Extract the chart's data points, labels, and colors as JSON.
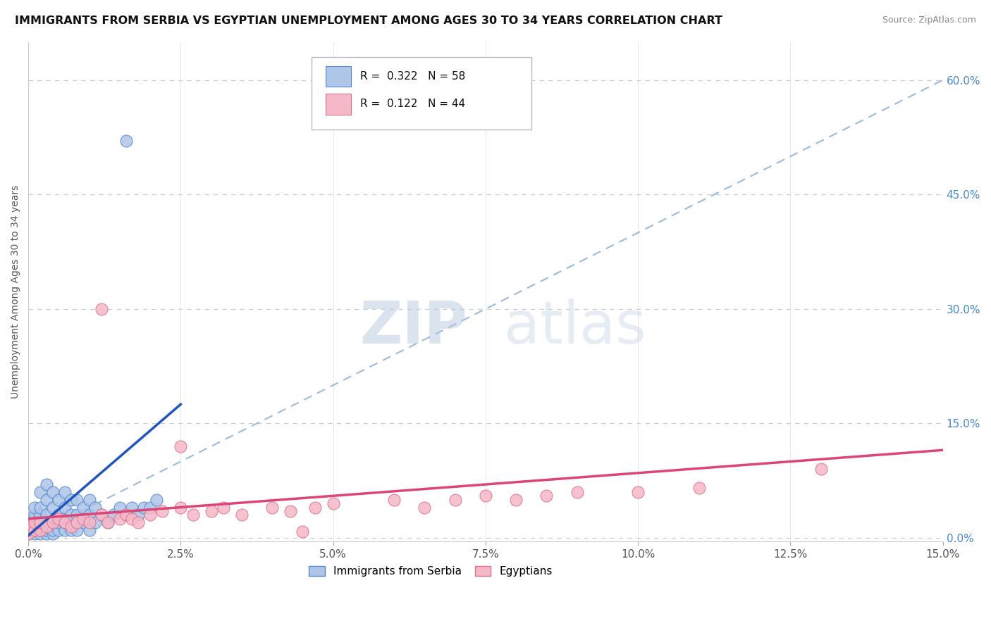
{
  "title": "IMMIGRANTS FROM SERBIA VS EGYPTIAN UNEMPLOYMENT AMONG AGES 30 TO 34 YEARS CORRELATION CHART",
  "source": "Source: ZipAtlas.com",
  "ylabel": "Unemployment Among Ages 30 to 34 years",
  "xlim": [
    0.0,
    0.15
  ],
  "ylim": [
    -0.005,
    0.65
  ],
  "xtick_vals": [
    0.0,
    0.025,
    0.05,
    0.075,
    0.1,
    0.125,
    0.15
  ],
  "xtick_labels": [
    "0.0%",
    "2.5%",
    "5.0%",
    "7.5%",
    "10.0%",
    "12.5%",
    "15.0%"
  ],
  "ytick_vals": [
    0.0,
    0.15,
    0.3,
    0.45,
    0.6
  ],
  "ytick_labels": [
    "0.0%",
    "15.0%",
    "30.0%",
    "45.0%",
    "60.0%"
  ],
  "serbia_color": "#aec6e8",
  "serbia_edge": "#5588cc",
  "egypt_color": "#f5b8c8",
  "egypt_edge": "#e0708a",
  "serbia_R": 0.322,
  "serbia_N": 58,
  "egypt_R": 0.122,
  "egypt_N": 44,
  "watermark_zip": "ZIP",
  "watermark_atlas": "atlas",
  "watermark_color": "#c8d5e8",
  "dash_color": "#99bbdd",
  "serbia_line_color": "#2255bb",
  "egypt_line_color": "#dd4477",
  "serbia_line_x0": 0.0,
  "serbia_line_y0": 0.003,
  "serbia_line_x1": 0.025,
  "serbia_line_y1": 0.175,
  "egypt_line_x0": 0.0,
  "egypt_line_y0": 0.025,
  "egypt_line_x1": 0.15,
  "egypt_line_y1": 0.115,
  "serbia_scatter_x": [
    0.0,
    0.0,
    0.001,
    0.001,
    0.001,
    0.001,
    0.001,
    0.001,
    0.001,
    0.002,
    0.002,
    0.002,
    0.002,
    0.002,
    0.002,
    0.003,
    0.003,
    0.003,
    0.003,
    0.003,
    0.003,
    0.004,
    0.004,
    0.004,
    0.004,
    0.004,
    0.005,
    0.005,
    0.005,
    0.005,
    0.006,
    0.006,
    0.006,
    0.006,
    0.007,
    0.007,
    0.007,
    0.008,
    0.008,
    0.008,
    0.009,
    0.009,
    0.01,
    0.01,
    0.01,
    0.011,
    0.011,
    0.012,
    0.013,
    0.014,
    0.015,
    0.016,
    0.017,
    0.018,
    0.019,
    0.02,
    0.021,
    0.016
  ],
  "serbia_scatter_y": [
    0.005,
    0.01,
    0.005,
    0.01,
    0.015,
    0.02,
    0.025,
    0.03,
    0.04,
    0.005,
    0.01,
    0.02,
    0.03,
    0.04,
    0.06,
    0.005,
    0.01,
    0.02,
    0.03,
    0.05,
    0.07,
    0.005,
    0.01,
    0.02,
    0.04,
    0.06,
    0.01,
    0.02,
    0.03,
    0.05,
    0.01,
    0.02,
    0.04,
    0.06,
    0.01,
    0.03,
    0.05,
    0.01,
    0.03,
    0.05,
    0.02,
    0.04,
    0.01,
    0.03,
    0.05,
    0.02,
    0.04,
    0.03,
    0.02,
    0.03,
    0.04,
    0.03,
    0.04,
    0.03,
    0.04,
    0.04,
    0.05,
    0.52
  ],
  "egypt_scatter_x": [
    0.0,
    0.0,
    0.001,
    0.001,
    0.002,
    0.002,
    0.003,
    0.004,
    0.005,
    0.006,
    0.007,
    0.008,
    0.009,
    0.01,
    0.012,
    0.013,
    0.015,
    0.016,
    0.017,
    0.018,
    0.02,
    0.022,
    0.025,
    0.027,
    0.03,
    0.032,
    0.035,
    0.04,
    0.043,
    0.047,
    0.05,
    0.06,
    0.065,
    0.07,
    0.075,
    0.08,
    0.085,
    0.09,
    0.1,
    0.11,
    0.012,
    0.025,
    0.045,
    0.13
  ],
  "egypt_scatter_y": [
    0.005,
    0.015,
    0.01,
    0.02,
    0.01,
    0.02,
    0.015,
    0.02,
    0.025,
    0.02,
    0.015,
    0.02,
    0.025,
    0.02,
    0.03,
    0.02,
    0.025,
    0.03,
    0.025,
    0.02,
    0.03,
    0.035,
    0.04,
    0.03,
    0.035,
    0.04,
    0.03,
    0.04,
    0.035,
    0.04,
    0.045,
    0.05,
    0.04,
    0.05,
    0.055,
    0.05,
    0.055,
    0.06,
    0.06,
    0.065,
    0.3,
    0.12,
    0.008,
    0.09
  ]
}
